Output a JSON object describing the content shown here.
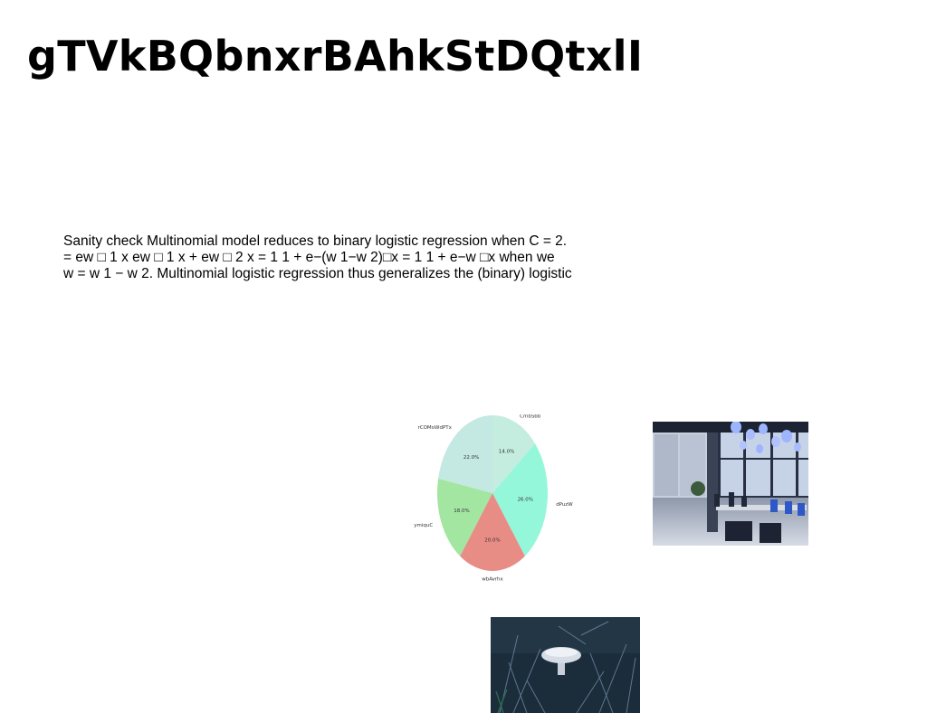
{
  "slide": {
    "title": "gTVkBQbnxrBAhkStDQtxlI",
    "body_lines": [
      "Sanity check Multinomial model reduces to binary logistic regression when C = 2.",
      "= ew □ 1 x ew □ 1 x + ew □ 2 x = 1 1 + e−(w 1−w 2)□x = 1 1 + e−w □x when we",
      "w = w 1 − w 2. Multinomial logistic regression thus generalizes the (binary) logistic"
    ]
  },
  "chart_data": {
    "type": "pie",
    "categories": [
      "CmbSbb",
      "dPuzW",
      "wbAvrhx",
      "ymiquC",
      "rCOMoWdPTx"
    ],
    "values": [
      14.0,
      26.0,
      20.0,
      18.0,
      22.0
    ],
    "value_labels": [
      "14.0%",
      "26.0%",
      "20.0%",
      "18.0%",
      "22.0%"
    ],
    "colors": [
      "#c4ecdf",
      "#95f7d9",
      "#e88c86",
      "#a2e6a2",
      "#c4e8e2"
    ],
    "start_angle_deg": 90,
    "direction": "clockwise"
  },
  "images": {
    "office_icon": "office-photo",
    "mushroom_icon": "mushroom-photo"
  }
}
